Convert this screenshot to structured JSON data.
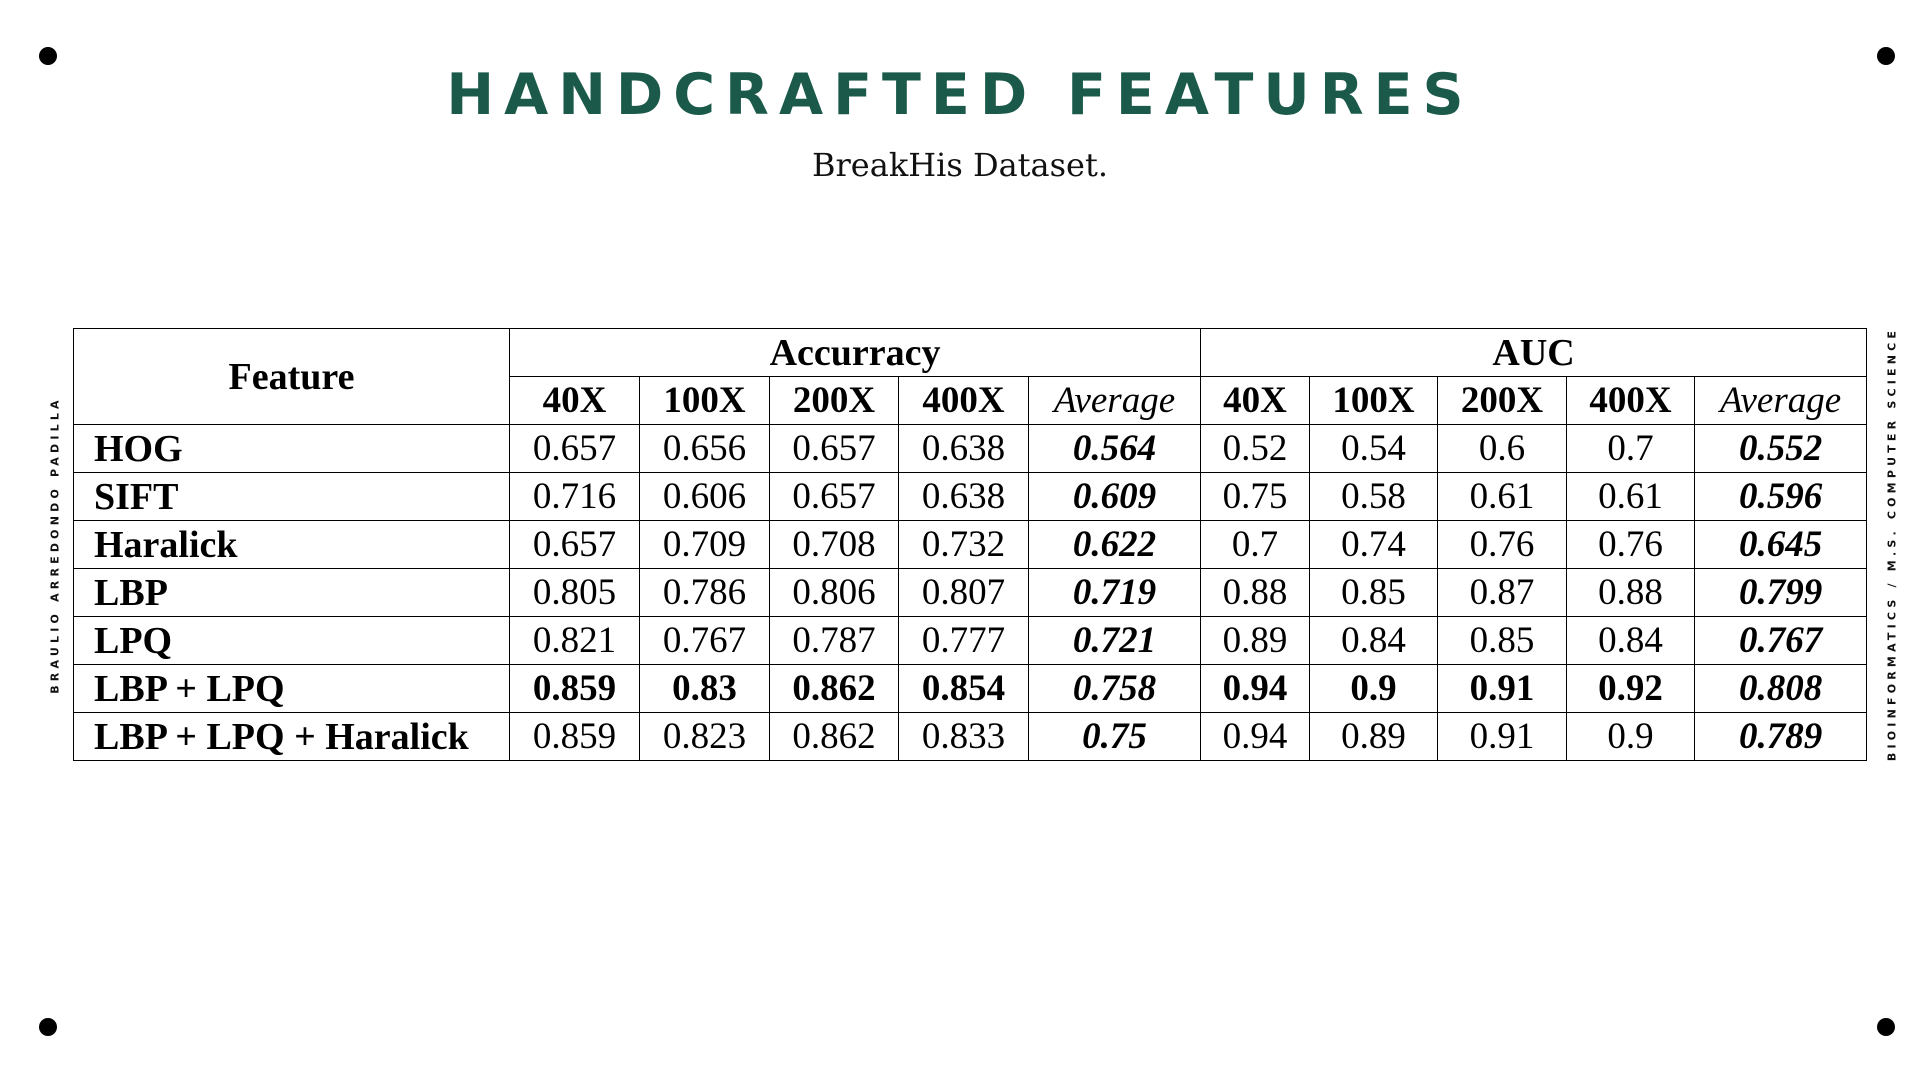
{
  "slide": {
    "title": "HANDCRAFTED FEATURES",
    "subtitle": "BreakHis  Dataset.",
    "side_left": "BRAULIO ARREDONDO PADILLA",
    "side_right": "BIOINFORMATICS / M.S. COMPUTER SCIENCE"
  },
  "table": {
    "feature_header": "Feature",
    "groups": [
      "Accurracy",
      "AUC"
    ],
    "accuracy_columns": [
      "40X",
      "100X",
      "200X",
      "400X",
      "Average"
    ],
    "auc_columns": [
      "40X",
      "100X",
      "200X",
      "400X",
      "Average"
    ],
    "rows": [
      {
        "feature": "HOG",
        "acc": [
          "0.657",
          "0.656",
          "0.657",
          "0.638",
          "0.564"
        ],
        "auc": [
          "0.52",
          "0.54",
          "0.6",
          "0.7",
          "0.552"
        ]
      },
      {
        "feature": "SIFT",
        "acc": [
          "0.716",
          "0.606",
          "0.657",
          "0.638",
          "0.609"
        ],
        "auc": [
          "0.75",
          "0.58",
          "0.61",
          "0.61",
          "0.596"
        ]
      },
      {
        "feature": "Haralick",
        "acc": [
          "0.657",
          "0.709",
          "0.708",
          "0.732",
          "0.622"
        ],
        "auc": [
          "0.7",
          "0.74",
          "0.76",
          "0.76",
          "0.645"
        ]
      },
      {
        "feature": "LBP",
        "acc": [
          "0.805",
          "0.786",
          "0.806",
          "0.807",
          "0.719"
        ],
        "auc": [
          "0.88",
          "0.85",
          "0.87",
          "0.88",
          "0.799"
        ]
      },
      {
        "feature": "LPQ",
        "acc": [
          "0.821",
          "0.767",
          "0.787",
          "0.777",
          "0.721"
        ],
        "auc": [
          "0.89",
          "0.84",
          "0.85",
          "0.84",
          "0.767"
        ]
      },
      {
        "feature": "LBP + LPQ",
        "acc": [
          "0.859",
          "0.83",
          "0.862",
          "0.854",
          "0.758"
        ],
        "auc": [
          "0.94",
          "0.9",
          "0.91",
          "0.92",
          "0.808"
        ]
      },
      {
        "feature": "LBP + LPQ + Haralick",
        "acc": [
          "0.859",
          "0.823",
          "0.862",
          "0.833",
          "0.75"
        ],
        "auc": [
          "0.94",
          "0.89",
          "0.91",
          "0.9",
          "0.789"
        ]
      }
    ]
  }
}
